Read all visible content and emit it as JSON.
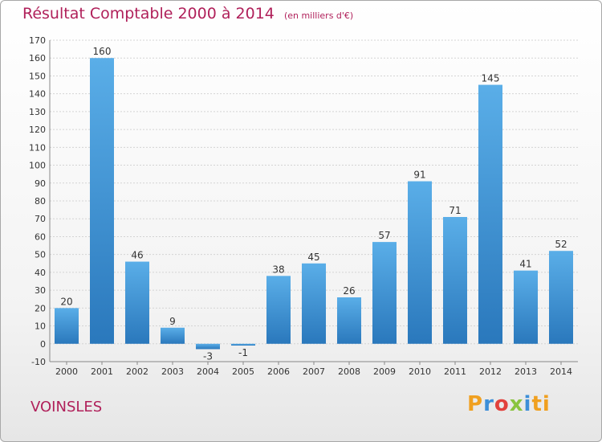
{
  "header": {
    "title": "Résultat Comptable 2000 à 2014",
    "subtitle": "(en milliers d'€)"
  },
  "commune": "VOINSLES",
  "logo": {
    "text": "Proxiti",
    "colors": [
      "#f0a020",
      "#3d8fd8",
      "#e2413c",
      "#8ac43f",
      "#3d8fd8",
      "#f0a020"
    ]
  },
  "colors": {
    "bar_top": "#5aaee8",
    "bar_bottom": "#2a78bc",
    "title": "#b0205a"
  },
  "chart_data": {
    "type": "bar",
    "categories": [
      "2000",
      "2001",
      "2002",
      "2003",
      "2004",
      "2005",
      "2006",
      "2007",
      "2008",
      "2009",
      "2010",
      "2011",
      "2012",
      "2013",
      "2014"
    ],
    "values": [
      20,
      160,
      46,
      9,
      -3,
      -1,
      38,
      45,
      26,
      57,
      91,
      71,
      145,
      41,
      52
    ],
    "data_labels": [
      "20",
      "160",
      "46",
      "9",
      "-3",
      "-1",
      "38",
      "45",
      "26",
      "57",
      "91",
      "71",
      "145",
      "41",
      "52"
    ],
    "y_ticks": [
      "170",
      "160",
      "150",
      "140",
      "130",
      "120",
      "110",
      "100",
      "90",
      "80",
      "70",
      "60",
      "50",
      "40",
      "30",
      "20",
      "10",
      "0",
      "-10"
    ],
    "title": "Résultat Comptable 2000 à 2014",
    "xlabel": "",
    "ylabel": "",
    "ylim": [
      -10,
      170
    ],
    "grid": true,
    "legend": "none"
  }
}
